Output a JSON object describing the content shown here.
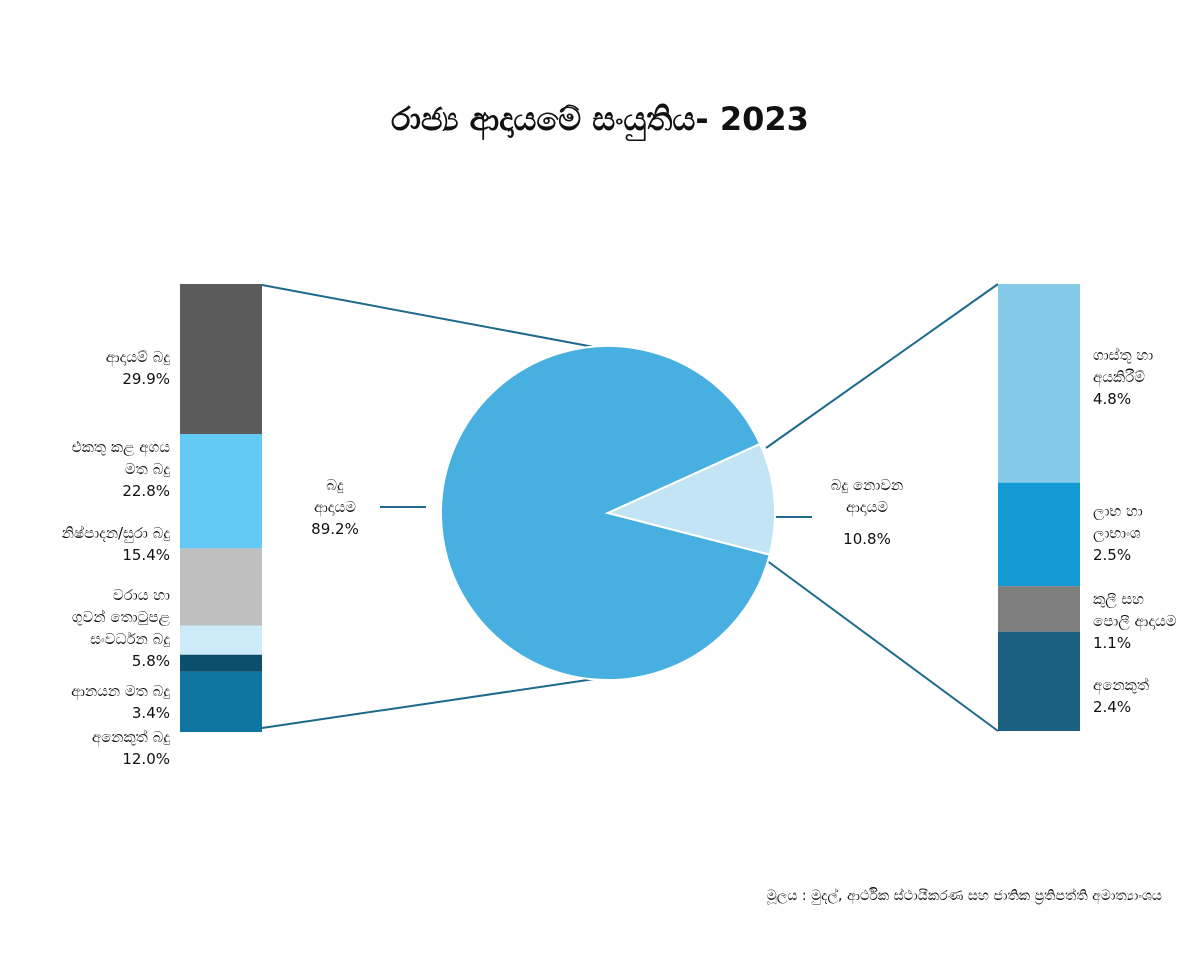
{
  "title": "රාජ්‍ය ආදායමේ සංයුතිය- 2023",
  "source": "මූලය :  මුදල්, ආර්ථික ස්ථායීකරණ සහ ජාතික ප්‍රතිපත්ති අමාත්‍යාංශය",
  "chart_data": [
    {
      "type": "pie",
      "title": "රාජ්‍ය ආදායමේ සංයුතිය- 2023",
      "slices": [
        {
          "label": "බදු ආදායම",
          "value": 89.2,
          "display": "89.2%",
          "color": "#47b0e0"
        },
        {
          "label": "බදු නොවන ආදායම",
          "value": 10.8,
          "display": "10.8%",
          "color": "#c3e4f5"
        }
      ]
    },
    {
      "type": "bar",
      "stacked": true,
      "parent": "බදු ආදායම",
      "segments": [
        {
          "label": "ආදායම් බදු",
          "value": 29.9,
          "display": "29.9%",
          "color": "#5b5b5b"
        },
        {
          "label": "එකතු කළ අගය මත බදු",
          "value": 22.8,
          "display": "22.8%",
          "color": "#62caf4"
        },
        {
          "label": "නිෂ්පාදන/සුරා බදු",
          "value": 15.4,
          "display": "15.4%",
          "color": "#bfbfbf"
        },
        {
          "label": "වරාය හා ගුවන් තොටුපළ සංවර්ධන බදු",
          "value": 5.8,
          "display": "5.8%",
          "color": "#cdebf8"
        },
        {
          "label": "ආනයන මත බදු",
          "value": 3.4,
          "display": "3.4%",
          "color": "#0b4f6c"
        },
        {
          "label": "අනෙකුත් බදු",
          "value": 12.0,
          "display": "12.0%",
          "color": "#0e76a0"
        }
      ]
    },
    {
      "type": "bar",
      "stacked": true,
      "parent": "බදු නොවන ආදායම",
      "segments": [
        {
          "label": "ගාස්තු හා අයකිරීම්",
          "value": 4.8,
          "display": "4.8%",
          "color": "#86caea"
        },
        {
          "label": "ලාභ හා ලාභාංශ",
          "value": 2.5,
          "display": "2.5%",
          "color": "#149bd5"
        },
        {
          "label": "කුලී සහ පොලී ආදායම",
          "value": 1.1,
          "display": "1.1%",
          "color": "#7f7f7f"
        },
        {
          "label": "අනෙකුත්",
          "value": 2.4,
          "display": "2.4%",
          "color": "#1b6080"
        }
      ]
    }
  ],
  "labels": {
    "pie_tax_l1": "බදු",
    "pie_tax_l2": "ආදායම",
    "pie_tax_val": "89.2%",
    "pie_nontax_l1": "බදු නොවන",
    "pie_nontax_l2": "ආදායම",
    "pie_nontax_val": "10.8%",
    "left": [
      [
        "ආදායම් බදු",
        "29.9%"
      ],
      [
        "එකතු කළ අගය",
        "මත බදු",
        "22.8%"
      ],
      [
        "නිෂ්පාදන/සුරා බදු",
        "15.4%"
      ],
      [
        "වරාය හා",
        "ගුවන් තොටුපළ",
        "සංවර්ධන බදු",
        "5.8%"
      ],
      [
        "ආනයන මත බදු",
        "3.4%"
      ],
      [
        "අනෙකුත් බදු",
        "12.0%"
      ]
    ],
    "right": [
      [
        "ගාස්තු හා",
        "අයකිරීම්",
        "4.8%"
      ],
      [
        "ලාභ හා",
        "ලාභාංශ",
        "2.5%"
      ],
      [
        "කුලී සහ",
        "පොලී ආදායම",
        "1.1%"
      ],
      [
        "අනෙකුත්",
        "2.4%"
      ]
    ]
  }
}
